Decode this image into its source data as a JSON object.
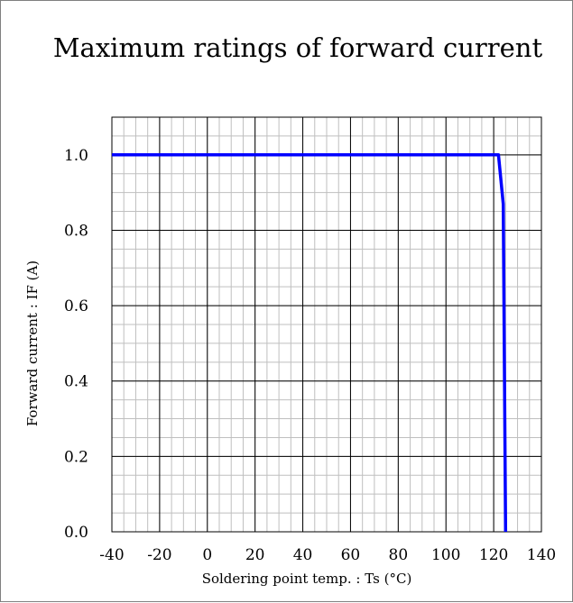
{
  "chart_data": {
    "type": "line",
    "title": "Maximum ratings of forward current",
    "xlabel": "Soldering point temp. : Ts (°C)",
    "ylabel": "Forward current : IF (A)",
    "xlim": [
      -40,
      140
    ],
    "ylim": [
      0.0,
      1.1
    ],
    "x_ticks": [
      -40,
      -20,
      0,
      20,
      40,
      60,
      80,
      100,
      120,
      140
    ],
    "x_tick_labels": [
      "-40",
      "-20",
      "0",
      "20",
      "40",
      "60",
      "80",
      "100",
      "120",
      "140"
    ],
    "y_ticks": [
      0.0,
      0.2,
      0.4,
      0.6,
      0.8,
      1.0
    ],
    "y_tick_labels": [
      "0.0",
      "0.2",
      "0.4",
      "0.6",
      "0.8",
      "1.0"
    ],
    "x_minor_step": 5,
    "y_minor_step": 0.05,
    "grid": true,
    "series": [
      {
        "color": "#0000ff",
        "points": [
          {
            "x": -40,
            "y": 1.0
          },
          {
            "x": 122,
            "y": 1.0
          },
          {
            "x": 124,
            "y": 0.87
          },
          {
            "x": 125,
            "y": 0.0
          }
        ]
      }
    ]
  }
}
